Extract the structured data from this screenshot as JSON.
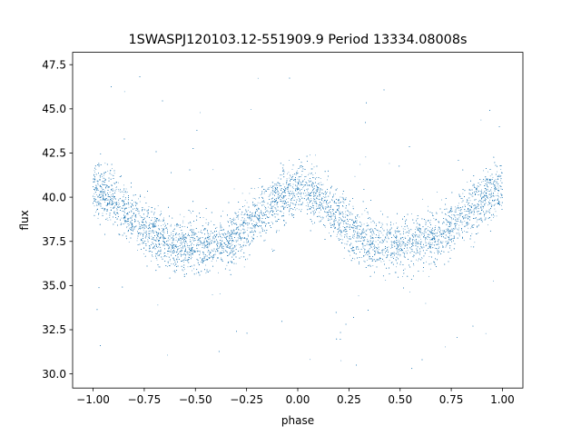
{
  "chart_data": {
    "type": "scatter",
    "title": "1SWASPJ120103.12-551909.9 Period 13334.08008s",
    "xlabel": "phase",
    "ylabel": "flux",
    "xlim": [
      -1.1,
      1.1
    ],
    "ylim": [
      29.2,
      48.2
    ],
    "xticks": [
      -1.0,
      -0.75,
      -0.5,
      -0.25,
      0.0,
      0.25,
      0.5,
      0.75,
      1.0
    ],
    "xtick_labels": [
      "−1.00",
      "−0.75",
      "−0.50",
      "−0.25",
      "0.00",
      "0.25",
      "0.50",
      "0.75",
      "1.00"
    ],
    "yticks": [
      30.0,
      32.5,
      35.0,
      37.5,
      40.0,
      42.5,
      45.0,
      47.5
    ],
    "ytick_labels": [
      "30.0",
      "32.5",
      "35.0",
      "37.5",
      "40.0",
      "42.5",
      "45.0",
      "47.5"
    ],
    "grid": false,
    "marker_color": "#1f77b4",
    "series": [
      {
        "x_range": [
          -1.0,
          1.0
        ],
        "point_count": 12000,
        "model": {
          "mean": 38.55,
          "amplitude": 1.55,
          "peak_phases": [
            -1.0,
            0.0,
            1.0
          ],
          "trough_phases": [
            -0.55,
            0.45
          ],
          "scatter_sigma": 0.95,
          "outlier_fraction": 0.02,
          "outlier_range": [
            30.0,
            47.2
          ]
        },
        "sample_points": [
          [
            -1.0,
            40.1
          ],
          [
            -0.9,
            39.6
          ],
          [
            -0.75,
            38.0
          ],
          [
            -0.6,
            37.1
          ],
          [
            -0.5,
            36.9
          ],
          [
            -0.35,
            37.8
          ],
          [
            -0.25,
            38.8
          ],
          [
            -0.1,
            39.9
          ],
          [
            0.0,
            40.2
          ],
          [
            0.1,
            39.6
          ],
          [
            0.25,
            38.2
          ],
          [
            0.4,
            37.0
          ],
          [
            0.5,
            36.9
          ],
          [
            0.6,
            37.3
          ],
          [
            0.75,
            38.6
          ],
          [
            0.9,
            39.8
          ],
          [
            1.0,
            40.4
          ]
        ]
      }
    ]
  }
}
